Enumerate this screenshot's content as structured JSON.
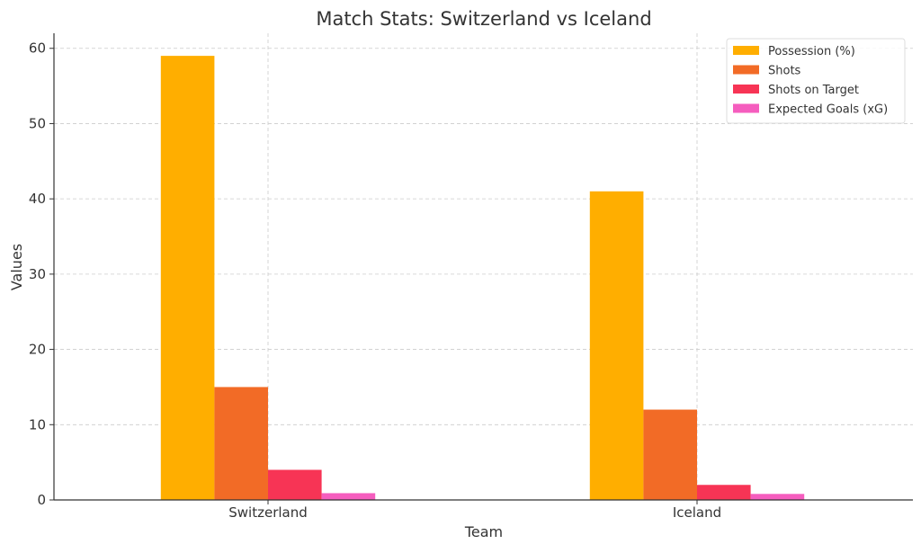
{
  "chart_data": {
    "type": "bar",
    "title": "Match Stats: Switzerland vs Iceland",
    "xlabel": "Team",
    "ylabel": "Values",
    "categories": [
      "Switzerland",
      "Iceland"
    ],
    "series": [
      {
        "name": "Possession (%)",
        "values": [
          59,
          41
        ],
        "color": "#FFAE00"
      },
      {
        "name": "Shots",
        "values": [
          15,
          12
        ],
        "color": "#F26B26"
      },
      {
        "name": "Shots on Target",
        "values": [
          4,
          2
        ],
        "color": "#F73455"
      },
      {
        "name": "Expected Goals (xG)",
        "values": [
          0.9,
          0.8
        ],
        "color": "#F55DBE"
      }
    ],
    "ylim": [
      0,
      62
    ],
    "yticks": [
      0,
      10,
      20,
      30,
      40,
      50,
      60
    ],
    "grid": true,
    "legend_position": "top-right"
  }
}
